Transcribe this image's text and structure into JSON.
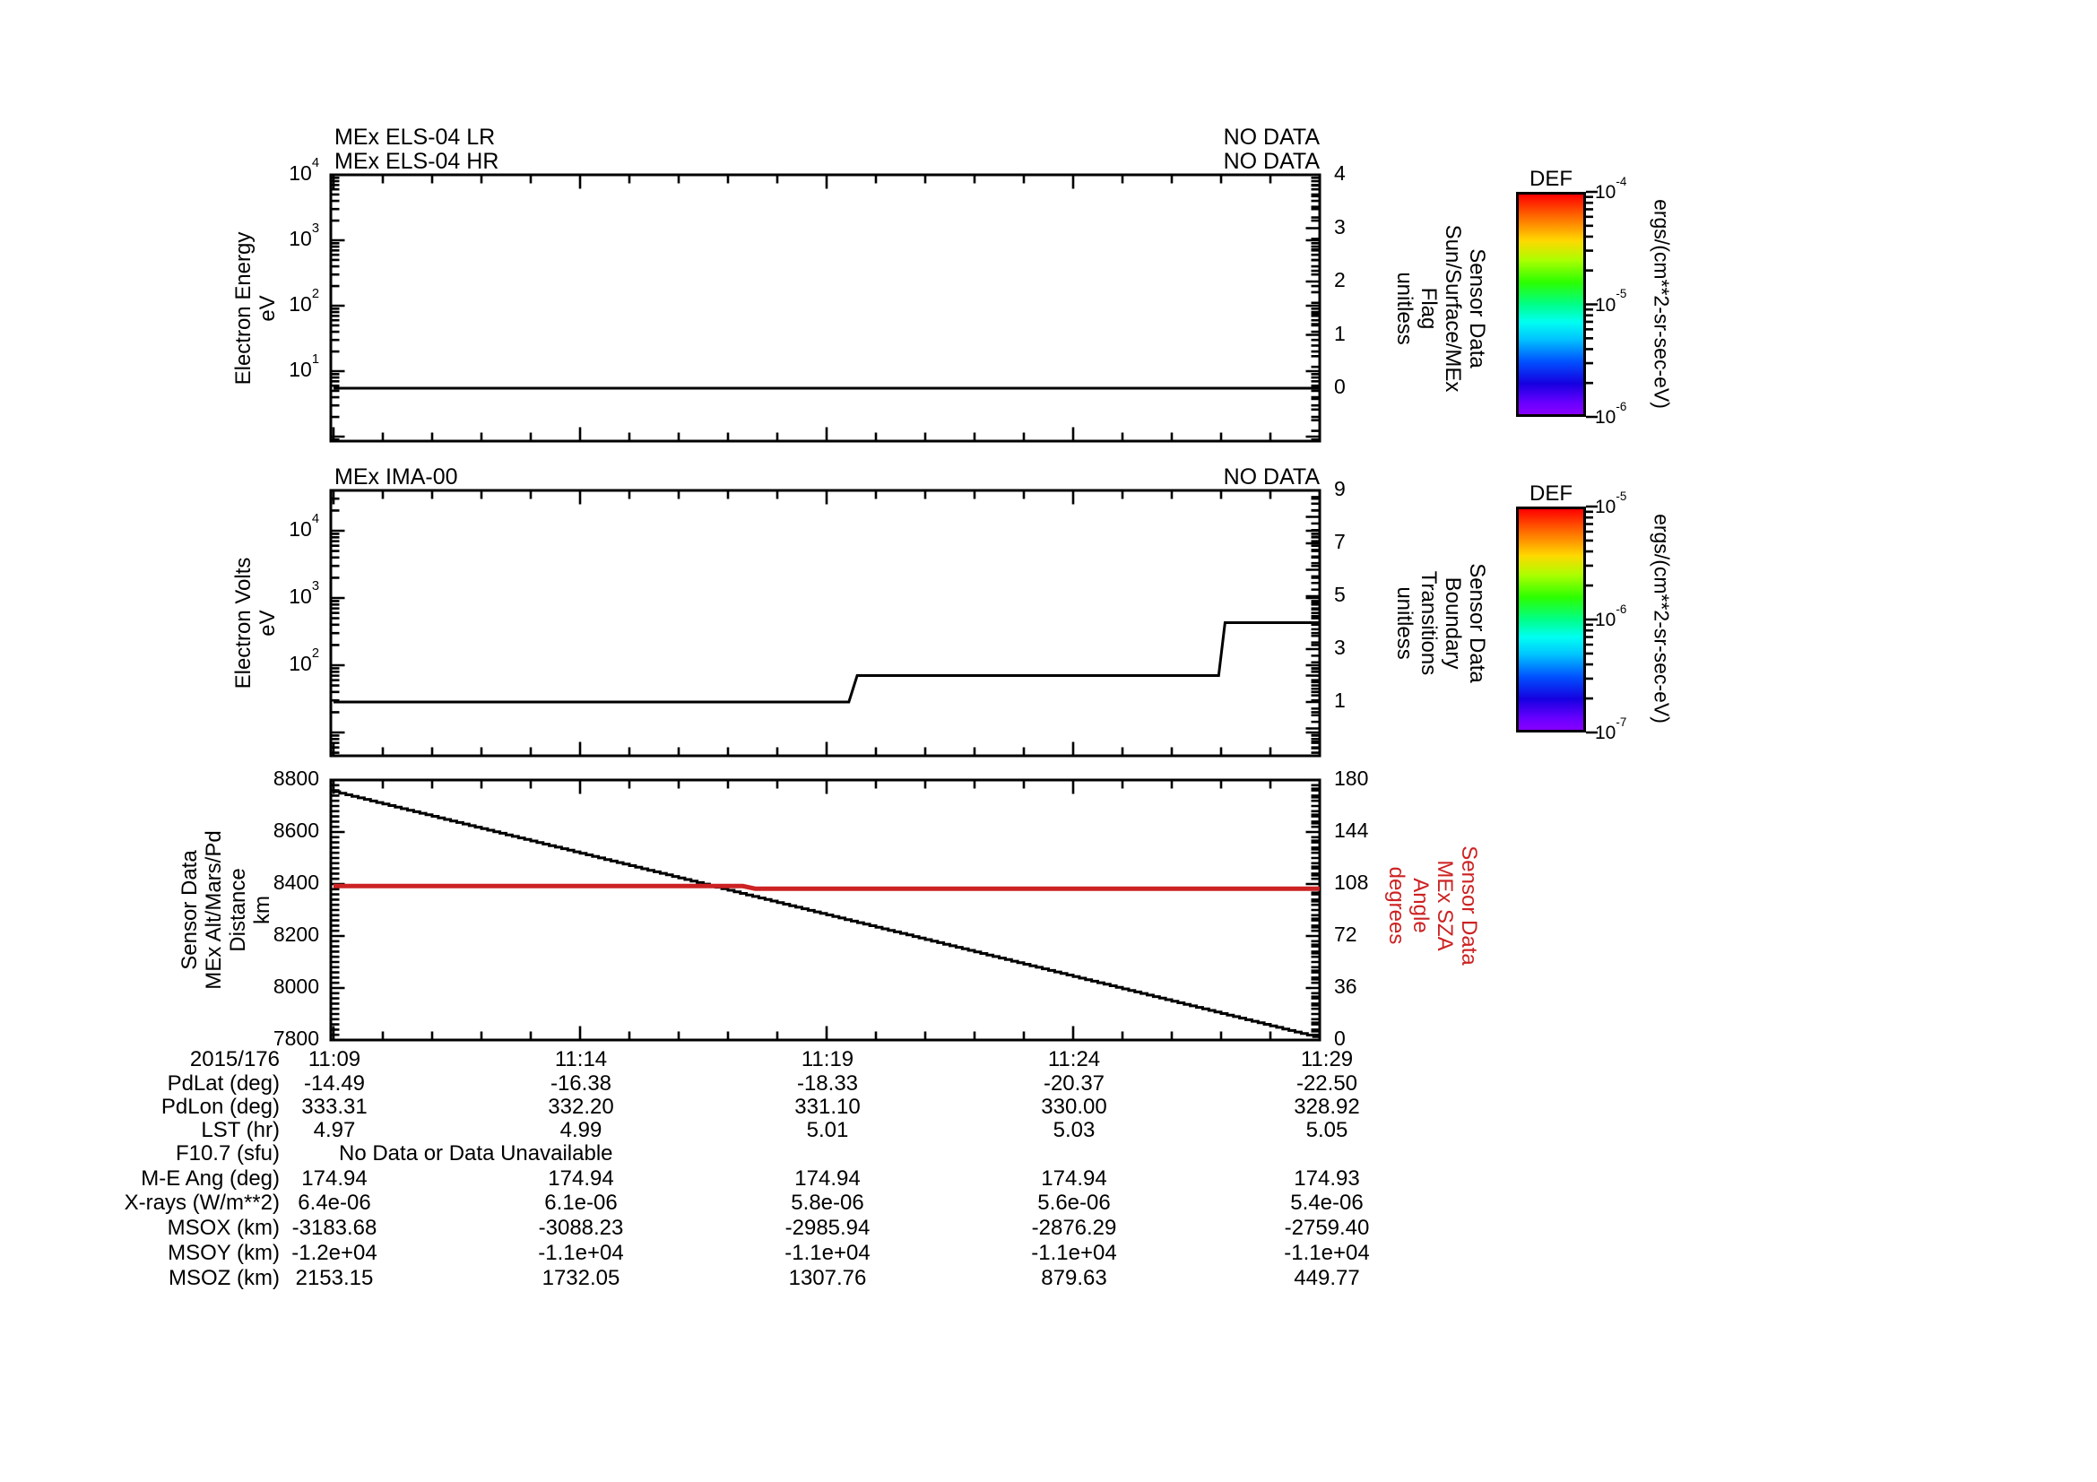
{
  "chart_data": {
    "type": "line",
    "time_axis": {
      "date_label": "2015/176",
      "tick_times": [
        "11:09",
        "11:14",
        "11:19",
        "11:24",
        "11:29"
      ],
      "minutes_span": 20
    },
    "panels": [
      {
        "id": "els",
        "titles": [
          "MEx ELS-04 LR",
          "MEx ELS-04 HR"
        ],
        "status": [
          "NO DATA",
          "NO DATA"
        ],
        "left_axis": {
          "label": "Electron Energy\neV",
          "scale": "log",
          "ticks": [
            {
              "b": "10",
              "s": "4"
            },
            {
              "b": "10",
              "s": "3"
            },
            {
              "b": "10",
              "s": "2"
            },
            {
              "b": "10",
              "s": "1"
            }
          ]
        },
        "right_axis": {
          "label": "Sensor Data\nSun/Surface/MEx\nFlag\nunitless",
          "color": "#000000",
          "range": [
            -1,
            4
          ],
          "ticks": [
            "4",
            "3",
            "2",
            "1",
            "0"
          ]
        },
        "series": [
          {
            "name": "sun-surface-mex-flag",
            "axis": "right",
            "color": "#000000",
            "points": [
              [
                0,
                0
              ],
              [
                20,
                0
              ]
            ]
          }
        ]
      },
      {
        "id": "ima",
        "titles": [
          "MEx IMA-00"
        ],
        "status": [
          "NO DATA"
        ],
        "left_axis": {
          "label": "Electron Volts\neV",
          "scale": "log",
          "ticks": [
            {
              "b": "10",
              "s": "4"
            },
            {
              "b": "10",
              "s": "3"
            },
            {
              "b": "10",
              "s": "2"
            }
          ]
        },
        "right_axis": {
          "label": "Sensor Data\nBoundary\nTransitions\nunitless",
          "color": "#000000",
          "range": [
            -1,
            9
          ],
          "ticks": [
            "9",
            "7",
            "5",
            "3",
            "1"
          ]
        },
        "series": [
          {
            "name": "boundary-transitions",
            "axis": "right",
            "color": "#000000",
            "points": [
              [
                0,
                1
              ],
              [
                10.45,
                1
              ],
              [
                10.62,
                2
              ],
              [
                17.95,
                2
              ],
              [
                18.08,
                4
              ],
              [
                20,
                4
              ]
            ]
          }
        ]
      },
      {
        "id": "alt-sza",
        "titles": [],
        "status": [],
        "left_axis": {
          "label": "Sensor Data\nMEx Alt/Mars/Pd\nDistance\nkm",
          "scale": "linear",
          "range": [
            7800,
            8800
          ],
          "ticks": [
            "8800",
            "8600",
            "8400",
            "8200",
            "8000",
            "7800"
          ]
        },
        "right_axis": {
          "label": "Sensor Data\nMEx SZA\nAngle\ndegrees",
          "color": "#cc2222",
          "range": [
            0,
            180
          ],
          "ticks": [
            "180",
            "144",
            "108",
            "72",
            "36",
            "0"
          ]
        },
        "series": [
          {
            "name": "mex-altitude-km",
            "axis": "left",
            "color": "#000000",
            "style": "staircase",
            "points": [
              [
                0,
                8755
              ],
              [
                20,
                7807
              ]
            ]
          },
          {
            "name": "mex-sza-degrees",
            "axis": "right",
            "color": "#cc2222",
            "width": 5,
            "points": [
              [
                0,
                106.6
              ],
              [
                8.3,
                106.6
              ],
              [
                8.55,
                104.8
              ],
              [
                20,
                104.8
              ]
            ]
          }
        ]
      }
    ],
    "colorbars": [
      {
        "title": "DEF",
        "unit": "ergs/(cm**2-sr-sec-eV)",
        "ticks": [
          {
            "b": "10",
            "s": "-4"
          },
          {
            "b": "10",
            "s": "-5"
          },
          {
            "b": "10",
            "s": "-6"
          }
        ],
        "gradient": [
          "#ff0000 0%",
          "#ff6a00 10%",
          "#ffd800 21%",
          "#aaff00 30%",
          "#2bff00 40%",
          "#00ff87 50%",
          "#00fff2 58%",
          "#00c3ff 66%",
          "#0051ff 76%",
          "#1500e0 86%",
          "#6a00ff 95%",
          "#8800ff 100%"
        ]
      },
      {
        "title": "DEF",
        "unit": "ergs/(cm**2-sr-sec-eV)",
        "ticks": [
          {
            "b": "10",
            "s": "-5"
          },
          {
            "b": "10",
            "s": "-6"
          },
          {
            "b": "10",
            "s": "-7"
          }
        ],
        "gradient": [
          "#ff0000 0%",
          "#ff6a00 10%",
          "#ffd800 21%",
          "#aaff00 30%",
          "#2bff00 40%",
          "#00ff87 50%",
          "#00fff2 58%",
          "#00c3ff 66%",
          "#0051ff 76%",
          "#1500e0 86%",
          "#6a00ff 95%",
          "#8800ff 100%"
        ]
      }
    ],
    "table": {
      "rows": [
        {
          "label": "2015/176",
          "values": [
            "11:09",
            "11:14",
            "11:19",
            "11:24",
            "11:29"
          ]
        },
        {
          "label": "PdLat (deg)",
          "values": [
            "-14.49",
            "-16.38",
            "-18.33",
            "-20.37",
            "-22.50"
          ]
        },
        {
          "label": "PdLon (deg)",
          "values": [
            "333.31",
            "332.20",
            "331.10",
            "330.00",
            "328.92"
          ]
        },
        {
          "label": "LST (hr)",
          "values": [
            "4.97",
            "4.99",
            "5.01",
            "5.03",
            "5.05"
          ]
        },
        {
          "label": "F10.7 (sfu)",
          "span": "No Data or Data Unavailable"
        },
        {
          "label": "M-E Ang (deg)",
          "values": [
            "174.94",
            "174.94",
            "174.94",
            "174.94",
            "174.93"
          ]
        },
        {
          "label": "X-rays (W/m**2)",
          "values": [
            "6.4e-06",
            "6.1e-06",
            "5.8e-06",
            "5.6e-06",
            "5.4e-06"
          ]
        },
        {
          "label": "MSOX (km)",
          "values": [
            "-3183.68",
            "-3088.23",
            "-2985.94",
            "-2876.29",
            "-2759.40"
          ]
        },
        {
          "label": "MSOY (km)",
          "values": [
            "-1.2e+04",
            "-1.1e+04",
            "-1.1e+04",
            "-1.1e+04",
            "-1.1e+04"
          ]
        },
        {
          "label": "MSOZ (km)",
          "values": [
            "2153.15",
            "1732.05",
            "1307.76",
            "879.63",
            "449.77"
          ]
        }
      ]
    }
  }
}
